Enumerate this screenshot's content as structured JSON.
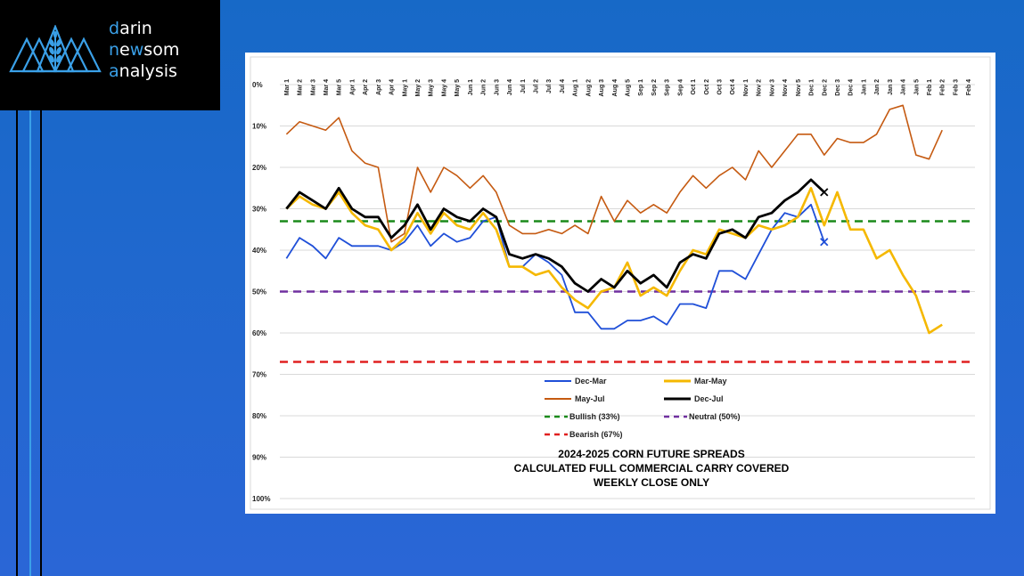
{
  "brand": {
    "line1_accent": "d",
    "line1_rest": "arin",
    "line2_accent": "n",
    "line2_mid": "e",
    "line2_accent2": "w",
    "line2_rest": "som",
    "line3_accent": "a",
    "line3_rest": "nalysis"
  },
  "colors": {
    "background": "#1f68cf",
    "brand_accent": "#3aa0e8",
    "dec_mar": "#1f4fd8",
    "mar_may": "#f5b800",
    "may_jul": "#c55a11",
    "dec_jul": "#000000",
    "bullish": "#1a8a1a",
    "neutral": "#7030a0",
    "bearish": "#e02020"
  },
  "chart_data": {
    "type": "line",
    "title": [
      "2024-2025 CORN FUTURE SPREADS",
      "CALCULATED FULL COMMERCIAL CARRY COVERED",
      "WEEKLY CLOSE ONLY"
    ],
    "y_axis": {
      "inverted": true,
      "ylim": [
        0,
        100
      ],
      "ticks": [
        "0%",
        "10%",
        "20%",
        "30%",
        "40%",
        "50%",
        "60%",
        "70%",
        "80%",
        "90%",
        "100%"
      ]
    },
    "grid": true,
    "legend_position": "bottom-left",
    "x": [
      "Mar 1",
      "Mar 2",
      "Mar 3",
      "Mar 4",
      "Mar 5",
      "Apr 1",
      "Apr 2",
      "Apr 3",
      "Apr 4",
      "May 1",
      "May 2",
      "May 3",
      "May 4",
      "May 5",
      "Jun 1",
      "Jun 2",
      "Jun 3",
      "Jun 4",
      "Jul 1",
      "Jul 2",
      "Jul 3",
      "Jul 4",
      "Aug 1",
      "Aug 2",
      "Aug 3",
      "Aug 4",
      "Aug 5",
      "Sep 1",
      "Sep 2",
      "Sep 3",
      "Sep 4",
      "Oct 1",
      "Oct 2",
      "Oct 3",
      "Oct 4",
      "Nov 1",
      "Nov 2",
      "Nov 3",
      "Nov 4",
      "Nov 5",
      "Dec 1",
      "Dec 2",
      "Dec 3",
      "Dec 4",
      "Jan 1",
      "Jan 2",
      "Jan 3",
      "Jan 4",
      "Jan 5",
      "Feb 1",
      "Feb 2",
      "Feb 3",
      "Feb 4"
    ],
    "series": [
      {
        "name": "Dec-Mar",
        "color": "#1f4fd8",
        "marker_last": "x",
        "values": [
          42,
          37,
          39,
          42,
          37,
          39,
          39,
          39,
          40,
          38,
          34,
          39,
          36,
          38,
          37,
          33,
          32,
          44,
          44,
          41,
          43,
          46,
          55,
          55,
          59,
          59,
          57,
          57,
          56,
          58,
          53,
          53,
          54,
          45,
          45,
          47,
          41,
          35,
          31,
          32,
          29,
          38,
          null,
          null,
          null,
          null,
          null,
          null,
          null,
          null,
          null,
          null,
          null
        ]
      },
      {
        "name": "Mar-May",
        "color": "#f5b800",
        "marker_last": "",
        "values": [
          30,
          27,
          29,
          30,
          26,
          31,
          34,
          35,
          40,
          37,
          31,
          36,
          31,
          34,
          35,
          31,
          35,
          44,
          44,
          46,
          45,
          49,
          52,
          54,
          50,
          49,
          43,
          51,
          49,
          51,
          45,
          40,
          41,
          35,
          36,
          37,
          34,
          35,
          34,
          32,
          25,
          34,
          26,
          35,
          35,
          42,
          40,
          46,
          51,
          60,
          58,
          null,
          null
        ]
      },
      {
        "name": "May-Jul",
        "color": "#c55a11",
        "marker_last": "",
        "values": [
          12,
          9,
          10,
          11,
          8,
          16,
          19,
          20,
          38,
          36,
          20,
          26,
          20,
          22,
          25,
          22,
          26,
          34,
          36,
          36,
          35,
          36,
          34,
          36,
          27,
          33,
          28,
          31,
          29,
          31,
          26,
          22,
          25,
          22,
          20,
          23,
          16,
          20,
          16,
          12,
          12,
          17,
          13,
          14,
          14,
          12,
          6,
          5,
          17,
          18,
          11,
          null,
          null
        ]
      },
      {
        "name": "Dec-Jul",
        "color": "#000000",
        "marker_last": "x",
        "values": [
          30,
          26,
          28,
          30,
          25,
          30,
          32,
          32,
          37,
          34,
          29,
          35,
          30,
          32,
          33,
          30,
          32,
          41,
          42,
          41,
          42,
          44,
          48,
          50,
          47,
          49,
          45,
          48,
          46,
          49,
          43,
          41,
          42,
          36,
          35,
          37,
          32,
          31,
          28,
          26,
          23,
          26,
          null,
          null,
          null,
          null,
          null,
          null,
          null,
          null,
          null,
          null,
          null
        ]
      }
    ],
    "reference_lines": [
      {
        "name": "Bullish (33%)",
        "value": 33,
        "color": "#1a8a1a"
      },
      {
        "name": "Neutral (50%)",
        "value": 50,
        "color": "#7030a0"
      },
      {
        "name": "Bearish (67%)",
        "value": 67,
        "color": "#e02020"
      }
    ]
  }
}
